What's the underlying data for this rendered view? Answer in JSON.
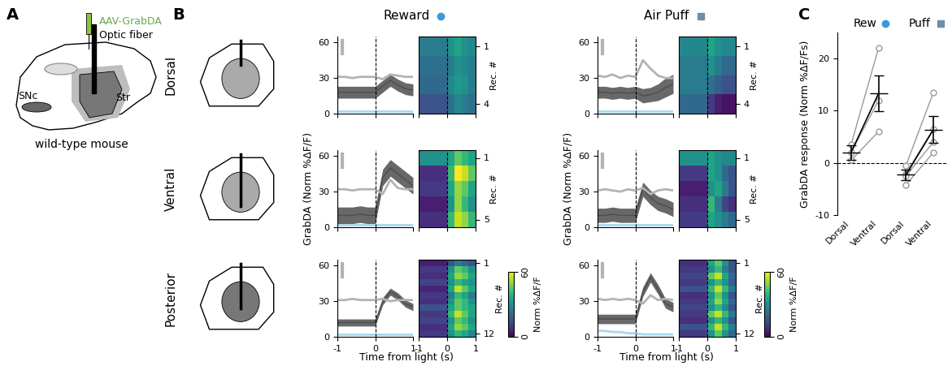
{
  "panel_labels": [
    "A",
    "B",
    "C"
  ],
  "schematic": {
    "injection": "AAV-GrabDA",
    "fiber": "Optic fiber",
    "regions": [
      "Str",
      "SNc"
    ],
    "caption": "wild-type mouse"
  },
  "rows": [
    "Dorsal",
    "Ventral",
    "Posterior"
  ],
  "columns": [
    "Reward",
    "Air Puff"
  ],
  "chart_data": [
    {
      "type": "line",
      "row": "Dorsal",
      "column": "Reward",
      "event_x": 0,
      "x": [
        -1,
        -0.8,
        -0.6,
        -0.4,
        -0.2,
        0,
        0.2,
        0.4,
        0.6,
        0.8,
        1
      ],
      "xlim": [
        -1,
        1
      ],
      "xticks": [
        -1,
        0,
        1
      ],
      "ylim": [
        0,
        65
      ],
      "yticks": [
        0,
        30,
        60
      ],
      "tick_labels": "y",
      "series": [
        {
          "color": "#4d4d4d",
          "values": [
            18,
            18,
            18,
            18,
            18,
            18,
            23,
            28,
            24,
            21,
            20
          ],
          "error": [
            5,
            5,
            5,
            5,
            5,
            5,
            5,
            5,
            5,
            5,
            5
          ]
        },
        {
          "color": "#b3b3b3",
          "values": [
            31,
            31,
            30,
            31,
            31,
            31,
            29,
            33,
            32,
            31,
            31
          ]
        },
        {
          "color": "#a6d8ef",
          "values": [
            2,
            2,
            2,
            2,
            2,
            2,
            2,
            2,
            2,
            2,
            2
          ]
        }
      ]
    },
    {
      "type": "heatmap",
      "row": "Dorsal",
      "column": "Reward",
      "event_x": 0,
      "x_edges": [
        -1,
        -0.75,
        -0.5,
        -0.25,
        0,
        0.25,
        0.5,
        0.75,
        1
      ],
      "xlim": [
        -1,
        1
      ],
      "xticks": [
        -1,
        0,
        1
      ],
      "ylim": [
        4.5,
        0.5
      ],
      "yticks": [
        1,
        4
      ],
      "ylabel": "Rec. #",
      "tick_labels": "y",
      "color_range": [
        0,
        60
      ],
      "cells": [
        [
          25,
          25,
          25,
          25,
          30,
          35,
          30,
          28
        ],
        [
          22,
          22,
          22,
          22,
          25,
          30,
          28,
          25
        ],
        [
          20,
          20,
          20,
          20,
          28,
          32,
          30,
          25
        ],
        [
          15,
          15,
          15,
          15,
          22,
          28,
          25,
          22
        ]
      ]
    },
    {
      "type": "line",
      "row": "Dorsal",
      "column": "Air Puff",
      "event_x": 0,
      "x": [
        -1,
        -0.8,
        -0.6,
        -0.4,
        -0.2,
        0,
        0.2,
        0.4,
        0.6,
        0.8,
        1
      ],
      "xlim": [
        -1,
        1
      ],
      "xticks": [
        -1,
        0,
        1
      ],
      "ylim": [
        0,
        65
      ],
      "yticks": [
        0,
        30,
        60
      ],
      "tick_labels": "y",
      "series": [
        {
          "color": "#4d4d4d",
          "values": [
            18,
            18,
            17,
            18,
            17,
            18,
            15,
            16,
            18,
            22,
            25
          ],
          "error": [
            5,
            5,
            5,
            5,
            5,
            5,
            6,
            6,
            7,
            8,
            8
          ]
        },
        {
          "color": "#b3b3b3",
          "values": [
            32,
            31,
            33,
            30,
            32,
            31,
            45,
            38,
            32,
            30,
            30
          ]
        },
        {
          "color": "#a6d8ef",
          "values": [
            2,
            2,
            2,
            2,
            2,
            2,
            2,
            2,
            2,
            2,
            2
          ]
        }
      ]
    },
    {
      "type": "heatmap",
      "row": "Dorsal",
      "column": "Air Puff",
      "event_x": 0,
      "x_edges": [
        -1,
        -0.75,
        -0.5,
        -0.25,
        0,
        0.25,
        0.5,
        0.75,
        1
      ],
      "xlim": [
        -1,
        1
      ],
      "xticks": [
        -1,
        0,
        1
      ],
      "ylim": [
        4.5,
        0.5
      ],
      "yticks": [
        1,
        4
      ],
      "ylabel": "Rec. #",
      "tick_labels": "y",
      "color_range": [
        0,
        60
      ],
      "cells": [
        [
          28,
          28,
          28,
          28,
          35,
          30,
          28,
          28
        ],
        [
          25,
          25,
          25,
          25,
          30,
          25,
          20,
          20
        ],
        [
          25,
          25,
          25,
          25,
          22,
          18,
          15,
          15
        ],
        [
          20,
          20,
          20,
          20,
          10,
          5,
          3,
          3
        ]
      ]
    },
    {
      "type": "line",
      "row": "Ventral",
      "column": "Reward",
      "event_x": 0,
      "ylabel": "GrabDA (Norm %ΔF/F)",
      "x": [
        -1,
        -0.8,
        -0.6,
        -0.4,
        -0.2,
        0,
        0.2,
        0.4,
        0.6,
        0.8,
        1
      ],
      "xlim": [
        -1,
        1
      ],
      "xticks": [
        -1,
        0,
        1
      ],
      "ylim": [
        0,
        65
      ],
      "yticks": [
        0,
        30,
        60
      ],
      "tick_labels": "y",
      "series": [
        {
          "color": "#4d4d4d",
          "values": [
            10,
            10,
            10,
            11,
            10,
            10,
            42,
            50,
            45,
            40,
            35
          ],
          "error": [
            7,
            7,
            7,
            7,
            7,
            7,
            7,
            7,
            7,
            7,
            7
          ]
        },
        {
          "color": "#b3b3b3",
          "values": [
            32,
            32,
            31,
            32,
            32,
            32,
            28,
            40,
            33,
            32,
            32
          ]
        },
        {
          "color": "#a6d8ef",
          "values": [
            2,
            2,
            2,
            2,
            2,
            2,
            2,
            2,
            2,
            2,
            2
          ]
        }
      ]
    },
    {
      "type": "heatmap",
      "row": "Ventral",
      "column": "Reward",
      "event_x": 0,
      "x_edges": [
        -1,
        -0.75,
        -0.5,
        -0.25,
        0,
        0.25,
        0.5,
        0.75,
        1
      ],
      "xlim": [
        -1,
        1
      ],
      "xticks": [
        -1,
        0,
        1
      ],
      "ylim": [
        5.5,
        0.5
      ],
      "yticks": [
        1,
        5
      ],
      "ylabel": "Rec. #",
      "tick_labels": "y",
      "color_range": [
        0,
        60
      ],
      "cells": [
        [
          30,
          30,
          30,
          30,
          35,
          45,
          40,
          35
        ],
        [
          8,
          8,
          8,
          8,
          40,
          60,
          55,
          45
        ],
        [
          10,
          10,
          10,
          10,
          35,
          50,
          45,
          35
        ],
        [
          5,
          5,
          5,
          5,
          30,
          50,
          40,
          30
        ],
        [
          8,
          8,
          8,
          8,
          40,
          55,
          50,
          40
        ]
      ]
    },
    {
      "type": "line",
      "row": "Ventral",
      "column": "Air Puff",
      "event_x": 0,
      "ylabel": "GrabDA (Norm %ΔF/F)",
      "x": [
        -1,
        -0.8,
        -0.6,
        -0.4,
        -0.2,
        0,
        0.2,
        0.4,
        0.6,
        0.8,
        1
      ],
      "xlim": [
        -1,
        1
      ],
      "xticks": [
        -1,
        0,
        1
      ],
      "ylim": [
        0,
        65
      ],
      "yticks": [
        0,
        30,
        60
      ],
      "tick_labels": "y",
      "series": [
        {
          "color": "#4d4d4d",
          "values": [
            10,
            10,
            11,
            10,
            10,
            10,
            32,
            25,
            20,
            18,
            15
          ],
          "error": [
            6,
            6,
            6,
            6,
            6,
            6,
            6,
            6,
            6,
            6,
            6
          ]
        },
        {
          "color": "#b3b3b3",
          "values": [
            31,
            32,
            31,
            30,
            32,
            31,
            33,
            28,
            31,
            32,
            31
          ]
        },
        {
          "color": "#a6d8ef",
          "values": [
            2,
            2,
            2,
            2,
            2,
            2,
            2,
            2,
            2,
            2,
            2
          ]
        }
      ]
    },
    {
      "type": "heatmap",
      "row": "Ventral",
      "column": "Air Puff",
      "event_x": 0,
      "x_edges": [
        -1,
        -0.75,
        -0.5,
        -0.25,
        0,
        0.25,
        0.5,
        0.75,
        1
      ],
      "xlim": [
        -1,
        1
      ],
      "xticks": [
        -1,
        0,
        1
      ],
      "ylim": [
        5.5,
        0.5
      ],
      "yticks": [
        1,
        5
      ],
      "ylabel": "Rec. #",
      "tick_labels": "y",
      "color_range": [
        0,
        60
      ],
      "cells": [
        [
          30,
          30,
          30,
          30,
          35,
          30,
          28,
          28
        ],
        [
          10,
          10,
          10,
          10,
          35,
          30,
          20,
          15
        ],
        [
          5,
          5,
          5,
          5,
          30,
          35,
          25,
          15
        ],
        [
          8,
          8,
          8,
          8,
          40,
          25,
          12,
          8
        ],
        [
          10,
          10,
          10,
          10,
          35,
          30,
          25,
          20
        ]
      ]
    },
    {
      "type": "line",
      "row": "Posterior",
      "column": "Reward",
      "event_x": 0,
      "xlabel": "Time from light (s)",
      "x": [
        -1,
        -0.8,
        -0.6,
        -0.4,
        -0.2,
        0,
        0.2,
        0.4,
        0.6,
        0.8,
        1
      ],
      "xlim": [
        -1,
        1
      ],
      "xticks": [
        -1,
        0,
        1
      ],
      "ylim": [
        0,
        65
      ],
      "yticks": [
        0,
        30,
        60
      ],
      "series": [
        {
          "color": "#4d4d4d",
          "values": [
            12,
            12,
            12,
            12,
            12,
            12,
            30,
            38,
            34,
            28,
            25
          ],
          "error": [
            3,
            3,
            3,
            3,
            3,
            3,
            3,
            3,
            3,
            3,
            3
          ]
        },
        {
          "color": "#b3b3b3",
          "values": [
            31,
            31,
            32,
            31,
            31,
            31,
            32,
            30,
            31,
            31,
            31
          ]
        },
        {
          "color": "#a6d8ef",
          "values": [
            2,
            2,
            2,
            2,
            2,
            2,
            2,
            2,
            2,
            2,
            2
          ]
        }
      ]
    },
    {
      "type": "heatmap",
      "row": "Posterior",
      "column": "Reward",
      "event_x": 0,
      "x_edges": [
        -1,
        -0.75,
        -0.5,
        -0.25,
        0,
        0.25,
        0.5,
        0.75,
        1
      ],
      "xlim": [
        -1,
        1
      ],
      "xticks": [
        -1,
        0,
        1
      ],
      "ylim": [
        12.5,
        0.5
      ],
      "yticks": [
        1,
        12
      ],
      "ylabel": "Rec. #",
      "color_range": [
        0,
        60
      ],
      "colorbar": {
        "ticks": [
          0,
          60
        ],
        "label": "Norm %ΔF/F"
      },
      "cells": [
        [
          5,
          5,
          5,
          5,
          15,
          25,
          20,
          15
        ],
        [
          10,
          10,
          10,
          10,
          30,
          45,
          40,
          30
        ],
        [
          8,
          8,
          8,
          8,
          35,
          50,
          45,
          35
        ],
        [
          12,
          12,
          12,
          12,
          30,
          40,
          35,
          30
        ],
        [
          6,
          6,
          6,
          6,
          35,
          55,
          45,
          35
        ],
        [
          10,
          10,
          10,
          10,
          25,
          40,
          35,
          25
        ],
        [
          8,
          8,
          8,
          8,
          30,
          45,
          40,
          30
        ],
        [
          15,
          15,
          15,
          15,
          35,
          45,
          40,
          35
        ],
        [
          10,
          10,
          10,
          10,
          40,
          55,
          45,
          35
        ],
        [
          12,
          12,
          12,
          12,
          30,
          45,
          40,
          30
        ],
        [
          8,
          8,
          8,
          8,
          35,
          50,
          45,
          35
        ],
        [
          10,
          10,
          10,
          10,
          30,
          40,
          35,
          28
        ]
      ]
    },
    {
      "type": "line",
      "row": "Posterior",
      "column": "Air Puff",
      "event_x": 0,
      "xlabel": "Time from light (s)",
      "x": [
        -1,
        -0.8,
        -0.6,
        -0.4,
        -0.2,
        0,
        0.2,
        0.4,
        0.6,
        0.8,
        1
      ],
      "xlim": [
        -1,
        1
      ],
      "xticks": [
        -1,
        0,
        1
      ],
      "ylim": [
        0,
        65
      ],
      "yticks": [
        0,
        30,
        60
      ],
      "series": [
        {
          "color": "#4d4d4d",
          "values": [
            15,
            15,
            15,
            15,
            15,
            15,
            38,
            50,
            40,
            28,
            25
          ],
          "error": [
            4,
            4,
            4,
            4,
            4,
            4,
            4,
            4,
            4,
            4,
            4
          ]
        },
        {
          "color": "#b3b3b3",
          "values": [
            32,
            31,
            32,
            31,
            32,
            31,
            28,
            35,
            31,
            32,
            31
          ]
        },
        {
          "color": "#a6d8ef",
          "values": [
            5,
            5,
            4,
            4,
            3,
            3,
            2,
            2,
            2,
            2,
            2
          ]
        }
      ]
    },
    {
      "type": "heatmap",
      "row": "Posterior",
      "column": "Air Puff",
      "event_x": 0,
      "x_edges": [
        -1,
        -0.75,
        -0.5,
        -0.25,
        0,
        0.25,
        0.5,
        0.75,
        1
      ],
      "xlim": [
        -1,
        1
      ],
      "xticks": [
        -1,
        0,
        1
      ],
      "ylim": [
        12.5,
        0.5
      ],
      "yticks": [
        1,
        12
      ],
      "ylabel": "Rec. #",
      "color_range": [
        0,
        60
      ],
      "colorbar": {
        "ticks": [
          0,
          60
        ],
        "label": "Norm %ΔF/F"
      },
      "cells": [
        [
          8,
          8,
          8,
          8,
          35,
          45,
          30,
          15
        ],
        [
          10,
          10,
          10,
          10,
          30,
          40,
          25,
          15
        ],
        [
          12,
          12,
          12,
          12,
          45,
          55,
          35,
          20
        ],
        [
          10,
          10,
          10,
          10,
          30,
          40,
          30,
          18
        ],
        [
          15,
          15,
          15,
          15,
          40,
          55,
          40,
          25
        ],
        [
          8,
          8,
          8,
          8,
          30,
          45,
          30,
          15
        ],
        [
          10,
          10,
          10,
          10,
          35,
          50,
          35,
          20
        ],
        [
          12,
          12,
          12,
          12,
          30,
          40,
          28,
          15
        ],
        [
          10,
          10,
          10,
          10,
          45,
          55,
          40,
          25
        ],
        [
          8,
          8,
          8,
          8,
          30,
          40,
          30,
          15
        ],
        [
          15,
          15,
          15,
          15,
          40,
          55,
          40,
          25
        ],
        [
          10,
          10,
          10,
          10,
          30,
          45,
          30,
          20
        ]
      ]
    },
    {
      "type": "paired_dot",
      "ylabel": "GrabDA response (Norm %ΔF/Fs)",
      "categories": [
        "Dorsal",
        "Ventral",
        "Dorsal",
        "Ventral"
      ],
      "ylim": [
        -10,
        25
      ],
      "yticks": [
        -10,
        0,
        10,
        20
      ],
      "reference_y": 0,
      "groups": [
        {
          "title": "Rew",
          "color": "#3a9ad9",
          "points": [
            [
              3.5,
              22
            ],
            [
              2,
              12
            ],
            [
              0.5,
              6
            ]
          ],
          "mean": [
            2,
            13.3
          ],
          "sem": [
            1.4,
            3.4
          ]
        },
        {
          "title": "Puff",
          "color": "#6f8fa8",
          "points": [
            [
              -0.5,
              13.5
            ],
            [
              -2,
              6.5
            ],
            [
              -2.5,
              4
            ],
            [
              -4.2,
              2
            ]
          ],
          "mean": [
            -2.3,
            6.4
          ],
          "sem": [
            1,
            2.6
          ]
        }
      ]
    }
  ]
}
